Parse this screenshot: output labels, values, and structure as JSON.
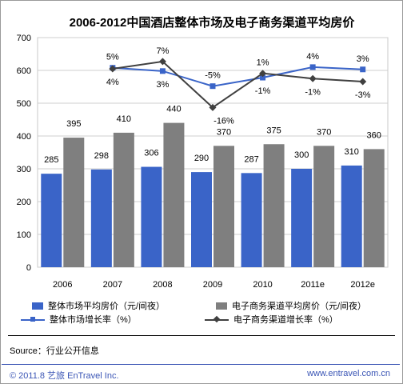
{
  "chart_data": {
    "type": "bar",
    "title": "2006-2012中国酒店整体市场及电子商务渠道平均房价",
    "categories": [
      "2006",
      "2007",
      "2008",
      "2009",
      "2010",
      "2011e",
      "2012e"
    ],
    "ylim": [
      0,
      700
    ],
    "yticks": [
      0,
      100,
      200,
      300,
      400,
      500,
      600,
      700
    ],
    "grid": true,
    "series": [
      {
        "name": "整体市场平均房价（元/间夜）",
        "kind": "bar",
        "color": "#3a64c8",
        "values": [
          285,
          298,
          306,
          290,
          287,
          300,
          310
        ],
        "labels": [
          "285",
          "298",
          "306",
          "290",
          "287",
          "300",
          "310"
        ]
      },
      {
        "name": "电子商务渠道平均房价（元/间夜）",
        "kind": "bar",
        "color": "#7f7f7f",
        "values": [
          395,
          410,
          440,
          370,
          375,
          370,
          360
        ],
        "labels": [
          "395",
          "410",
          "440",
          "370",
          "375",
          "370",
          "360"
        ]
      },
      {
        "name": "整体市场增长率（%）",
        "kind": "line",
        "marker": "square",
        "color": "#3a64c8",
        "x": [
          "2007",
          "2008",
          "2009",
          "2010",
          "2011e",
          "2012e"
        ],
        "values": [
          608,
          598,
          552,
          578,
          610,
          603
        ],
        "labels": [
          "5%",
          "3%",
          "-5%",
          "-1%",
          "4%",
          "3%"
        ]
      },
      {
        "name": "电子商务渠道增长率（%）",
        "kind": "line",
        "marker": "diamond",
        "color": "#404040",
        "x": [
          "2007",
          "2008",
          "2009",
          "2010",
          "2011e",
          "2012e"
        ],
        "values": [
          605,
          627,
          487,
          591,
          575,
          566
        ],
        "labels": [
          "4%",
          "7%",
          "-16%",
          "1%",
          "-1%",
          "-3%"
        ]
      }
    ],
    "legend_position": "bottom"
  },
  "footer": {
    "source": "Source：行业公开信息",
    "copyright": "© 2011.8  艺旅  EnTravel Inc.",
    "website": "www.entravel.com.cn"
  },
  "colors": {
    "blue": "#3a64c8",
    "gray": "#7f7f7f",
    "dark": "#404040",
    "footer_text": "#3a55b5"
  }
}
